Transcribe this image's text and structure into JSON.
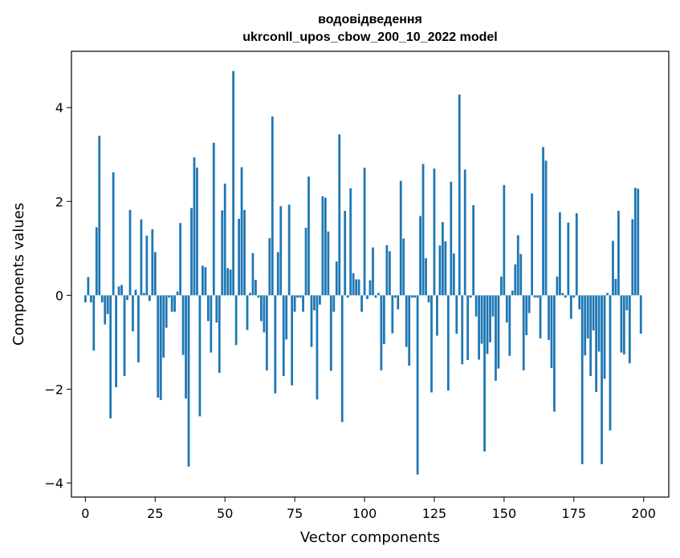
{
  "chart_data": {
    "type": "bar",
    "title": "водовідведення",
    "subtitle": "ukrconll_upos_cbow_200_10_2022 model",
    "xlabel": "Vector components",
    "ylabel": "Components values",
    "xlim": [
      -5,
      209
    ],
    "ylim": [
      -4.3,
      5.2
    ],
    "xticks": [
      0,
      25,
      50,
      75,
      100,
      125,
      150,
      175,
      200
    ],
    "xtick_labels": [
      "0",
      "25",
      "50",
      "75",
      "100",
      "125",
      "150",
      "175",
      "200"
    ],
    "yticks": [
      -4,
      -2,
      0,
      2,
      4
    ],
    "ytick_labels": [
      "−4",
      "−2",
      "0",
      "2",
      "4"
    ],
    "bar_color": "#1f77b4",
    "grid": false,
    "legend": "none",
    "x": [
      0,
      1,
      2,
      3,
      4,
      5,
      6,
      7,
      8,
      9,
      10,
      11,
      12,
      13,
      14,
      15,
      16,
      17,
      18,
      19,
      20,
      21,
      22,
      23,
      24,
      25,
      26,
      27,
      28,
      29,
      30,
      31,
      32,
      33,
      34,
      35,
      36,
      37,
      38,
      39,
      40,
      41,
      42,
      43,
      44,
      45,
      46,
      47,
      48,
      49,
      50,
      51,
      52,
      53,
      54,
      55,
      56,
      57,
      58,
      59,
      60,
      61,
      62,
      63,
      64,
      65,
      66,
      67,
      68,
      69,
      70,
      71,
      72,
      73,
      74,
      75,
      76,
      77,
      78,
      79,
      80,
      81,
      82,
      83,
      84,
      85,
      86,
      87,
      88,
      89,
      90,
      91,
      92,
      93,
      94,
      95,
      96,
      97,
      98,
      99,
      100,
      101,
      102,
      103,
      104,
      105,
      106,
      107,
      108,
      109,
      110,
      111,
      112,
      113,
      114,
      115,
      116,
      117,
      118,
      119,
      120,
      121,
      122,
      123,
      124,
      125,
      126,
      127,
      128,
      129,
      130,
      131,
      132,
      133,
      134,
      135,
      136,
      137,
      138,
      139,
      140,
      141,
      142,
      143,
      144,
      145,
      146,
      147,
      148,
      149,
      150,
      151,
      152,
      153,
      154,
      155,
      156,
      157,
      158,
      159,
      160,
      161,
      162,
      163,
      164,
      165,
      166,
      167,
      168,
      169,
      170,
      171,
      172,
      173,
      174,
      175,
      176,
      177,
      178,
      179,
      180,
      181,
      182,
      183,
      184,
      185,
      186,
      187,
      188,
      189,
      190,
      191,
      192,
      193,
      194,
      195,
      196,
      197,
      198,
      199
    ],
    "values": [
      -0.15,
      0.39,
      -0.15,
      -1.18,
      1.45,
      3.4,
      -0.15,
      -0.62,
      -0.4,
      -2.62,
      2.62,
      -1.96,
      0.19,
      0.22,
      -1.72,
      -0.1,
      1.82,
      -0.77,
      0.12,
      -1.43,
      1.62,
      0.05,
      1.27,
      -0.12,
      1.41,
      0.92,
      -2.18,
      -2.23,
      -1.33,
      -0.69,
      -0.05,
      -0.35,
      -0.35,
      0.08,
      1.54,
      -1.27,
      -2.2,
      -3.65,
      1.86,
      2.94,
      2.72,
      -2.58,
      0.63,
      0.6,
      -0.55,
      -1.22,
      3.25,
      -0.58,
      -1.65,
      1.81,
      2.38,
      0.58,
      0.55,
      4.78,
      -1.06,
      1.63,
      2.73,
      1.82,
      -0.74,
      0.05,
      0.9,
      0.33,
      -0.05,
      -0.55,
      -0.79,
      -1.6,
      1.22,
      3.81,
      -2.09,
      0.92,
      1.9,
      -1.72,
      -0.94,
      1.93,
      -1.92,
      -0.35,
      -0.05,
      -0.05,
      -0.35,
      1.44,
      2.53,
      -1.1,
      -0.32,
      -2.22,
      -0.2,
      2.11,
      2.08,
      1.36,
      -1.61,
      -0.35,
      0.72,
      3.43,
      -2.7,
      1.8,
      -0.05,
      2.28,
      0.47,
      0.34,
      0.34,
      -0.35,
      2.72,
      -0.08,
      0.32,
      1.02,
      -0.05,
      0.05,
      -1.6,
      -1.04,
      1.07,
      0.94,
      -0.81,
      -0.05,
      -0.3,
      2.44,
      1.21,
      -1.1,
      -1.5,
      -0.05,
      -0.05,
      -3.82,
      1.69,
      2.8,
      0.79,
      -0.15,
      -2.07,
      2.7,
      -0.86,
      1.06,
      1.56,
      1.15,
      -2.03,
      2.42,
      0.89,
      -0.82,
      4.28,
      -1.47,
      2.68,
      -1.38,
      -0.05,
      1.92,
      -0.45,
      -1.37,
      -1.03,
      -3.33,
      -1.25,
      -1.0,
      -0.45,
      -1.82,
      -1.56,
      0.4,
      2.35,
      -0.58,
      -1.29,
      0.1,
      0.66,
      1.28,
      0.88,
      -1.6,
      -0.85,
      -0.38,
      2.17,
      -0.05,
      -0.05,
      -0.92,
      3.16,
      2.87,
      -0.95,
      -1.55,
      -2.48,
      0.4,
      1.77,
      0.05,
      -0.05,
      1.55,
      -0.5,
      -0.05,
      1.75,
      -0.3,
      -3.6,
      -1.28,
      -0.92,
      -1.72,
      -0.75,
      -2.06,
      -1.2,
      -3.6,
      -1.78,
      0.05,
      -2.88,
      1.16,
      0.35,
      1.8,
      -1.22,
      -1.26,
      -0.32,
      -1.45,
      1.62,
      2.29,
      2.27,
      -0.82
    ]
  }
}
